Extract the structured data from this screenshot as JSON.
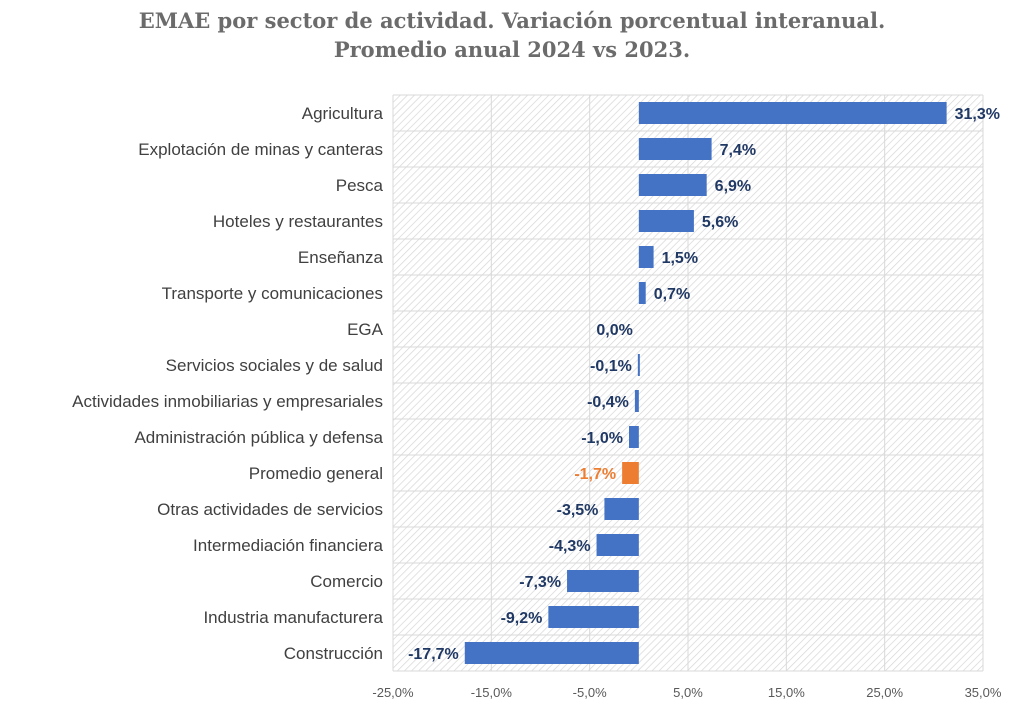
{
  "chart_data": {
    "type": "bar",
    "orientation": "horizontal",
    "title": "EMAE por sector de actividad. Variación porcentual interanual.",
    "subtitle": "Promedio anual 2024 vs 2023.",
    "categories": [
      "Agricultura",
      "Explotación de minas y canteras",
      "Pesca",
      "Hoteles y restaurantes",
      "Enseñanza",
      "Transporte y comunicaciones",
      "EGA",
      "Servicios sociales y de salud",
      "Actividades inmobiliarias y empresariales",
      "Administración pública y defensa",
      "Promedio general",
      "Otras actividades de servicios",
      "Intermediación financiera",
      "Comercio",
      "Industria manufacturera",
      "Construcción"
    ],
    "values": [
      31.3,
      7.4,
      6.9,
      5.6,
      1.5,
      0.7,
      0.0,
      -0.1,
      -0.4,
      -1.0,
      -1.7,
      -3.5,
      -4.3,
      -7.3,
      -9.2,
      -17.7
    ],
    "value_labels": [
      "31,3%",
      "7,4%",
      "6,9%",
      "5,6%",
      "1,5%",
      "0,7%",
      "0,0%",
      "-0,1%",
      "-0,4%",
      "-1,0%",
      "-1,7%",
      "-3,5%",
      "-4,3%",
      "-7,3%",
      "-9,2%",
      "-17,7%"
    ],
    "highlight_category": "Promedio general",
    "xlim": [
      -25,
      35
    ],
    "xticks": [
      -25,
      -15,
      -5,
      5,
      15,
      25,
      35
    ],
    "xtick_labels": [
      "-25,0%",
      "-15,0%",
      "-5,0%",
      "5,0%",
      "15,0%",
      "25,0%",
      "35,0%"
    ],
    "grid": true,
    "background_pattern": "hatched",
    "colors": {
      "bar": "#4472c4",
      "highlight_bar": "#ed7d31",
      "label": "#203864",
      "highlight_label": "#ed7d31",
      "grid": "#d9d9d9"
    }
  }
}
